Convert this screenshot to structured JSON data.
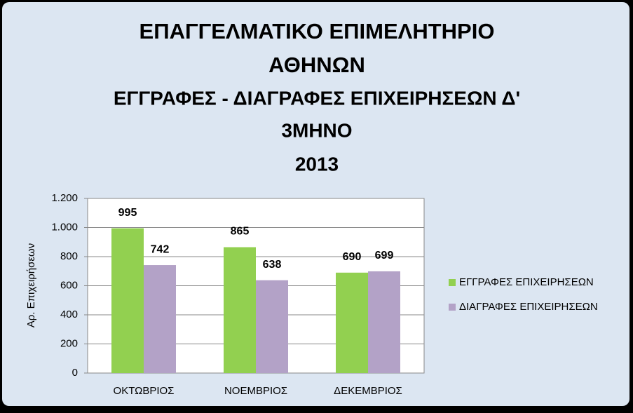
{
  "chart_data": {
    "type": "bar",
    "title": [
      "ΕΠΑΓΓΕΛΜΑΤΙΚΟ ΕΠΙΜΕΛΗΤΗΡΙΟ",
      "ΑΘΗΝΩΝ",
      "ΕΓΓΡΑΦΕΣ - ΔΙΑΓΡΑΦΕΣ ΕΠΙΧΕΙΡΗΣΕΩΝ Δ'",
      "3ΜΗΝΟ",
      "2013"
    ],
    "y_label": "Αρ. Επιχειρήσεων",
    "categories": [
      "ΟΚΤΩΒΡΙΟΣ",
      "ΝΟΕΜΒΡΙΟΣ",
      "ΔΕΚΕΜΒΡΙΟΣ"
    ],
    "series": [
      {
        "name": "ΕΓΓΡΑΦΕΣ ΕΠΙΧΕΙΡΗΣΕΩΝ",
        "color": "#92d050",
        "values": [
          995,
          865,
          690
        ]
      },
      {
        "name": "ΔΙΑΓΡΑΦΕΣ ΕΠΙΧΕΙΡΗΣΕΩΝ",
        "color": "#b3a2c7",
        "values": [
          742,
          638,
          699
        ]
      }
    ],
    "ylim": [
      0,
      1200
    ],
    "yticks": [
      0,
      200,
      400,
      600,
      800,
      {
        "value": 1000,
        "label": "1.000"
      },
      {
        "value": 1200,
        "label": "1.200"
      }
    ],
    "grid": true,
    "legend": "right"
  }
}
